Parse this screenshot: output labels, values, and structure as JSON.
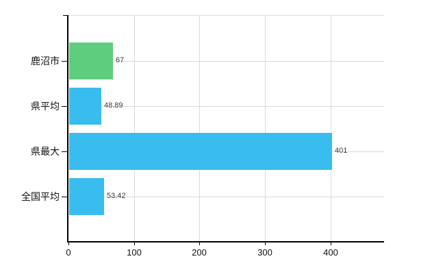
{
  "chart_data": {
    "type": "bar",
    "orientation": "horizontal",
    "title": "",
    "categories": [
      "鹿沼市",
      "県平均",
      "県最大",
      "全国平均"
    ],
    "values": [
      67,
      48.89,
      401,
      53.42
    ],
    "value_labels": [
      "67",
      "48.89",
      "401",
      "53.42"
    ],
    "series": [
      {
        "name": "",
        "values": [
          67,
          48.89,
          401,
          53.42
        ]
      }
    ],
    "bar_colors": [
      "#5ecd7e",
      "#38bdee",
      "#38bdee",
      "#38bdee"
    ],
    "x_ticks": [
      0,
      100,
      200,
      300,
      400
    ],
    "x_tick_labels": [
      "0",
      "100",
      "200",
      "300",
      "400"
    ],
    "xlim": [
      0,
      482
    ],
    "grid": true,
    "legend": false,
    "xlabel": "",
    "ylabel": "",
    "colors": {
      "highlight_bar": "#5ecd7e",
      "default_bar": "#38bdee",
      "gridline": "#d9d9d9",
      "axis": "#000000",
      "text": "#111111",
      "value_text": "#3c3c3c",
      "background": "#ffffff"
    }
  }
}
